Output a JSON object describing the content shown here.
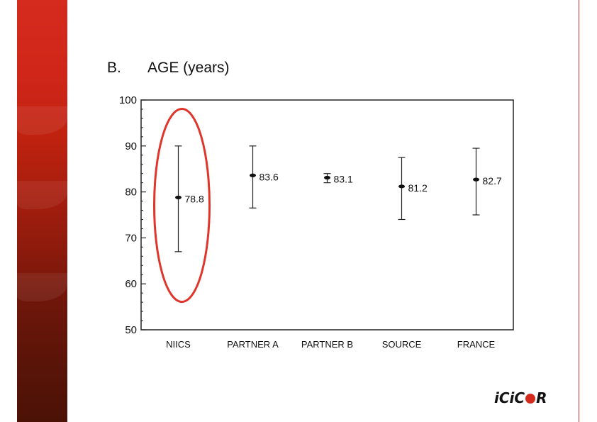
{
  "slide": {
    "section_letter": "B.",
    "section_title": "AGE (years)",
    "logo_text": {
      "part1": "iCiC",
      "part2": "R"
    }
  },
  "colors": {
    "band_top": "#d52b1e",
    "band_bottom": "#4c1206",
    "highlight_ellipse": "#e0352a",
    "right_rule": "#d8302a"
  },
  "chart_data": {
    "type": "scatter",
    "subtype": "mean-with-error-bars",
    "title": "AGE (years)",
    "categories": [
      "NIICS",
      "PARTNER A",
      "PARTNER B",
      "SOURCE",
      "FRANCE"
    ],
    "mean": [
      78.8,
      83.6,
      83.1,
      81.2,
      82.7
    ],
    "mean_labels": [
      "78.8",
      "83.6",
      "83.1",
      "81.2",
      "82.7"
    ],
    "error_low": [
      67.0,
      76.5,
      82.0,
      74.0,
      75.0
    ],
    "error_high": [
      90.0,
      90.0,
      84.0,
      87.5,
      89.5
    ],
    "ylim": [
      50,
      100
    ],
    "yticks": [
      50,
      60,
      70,
      80,
      90,
      100
    ],
    "minor_ytick_step": 2,
    "highlighted_category": "NIICS",
    "grid": false,
    "legend": "none"
  }
}
